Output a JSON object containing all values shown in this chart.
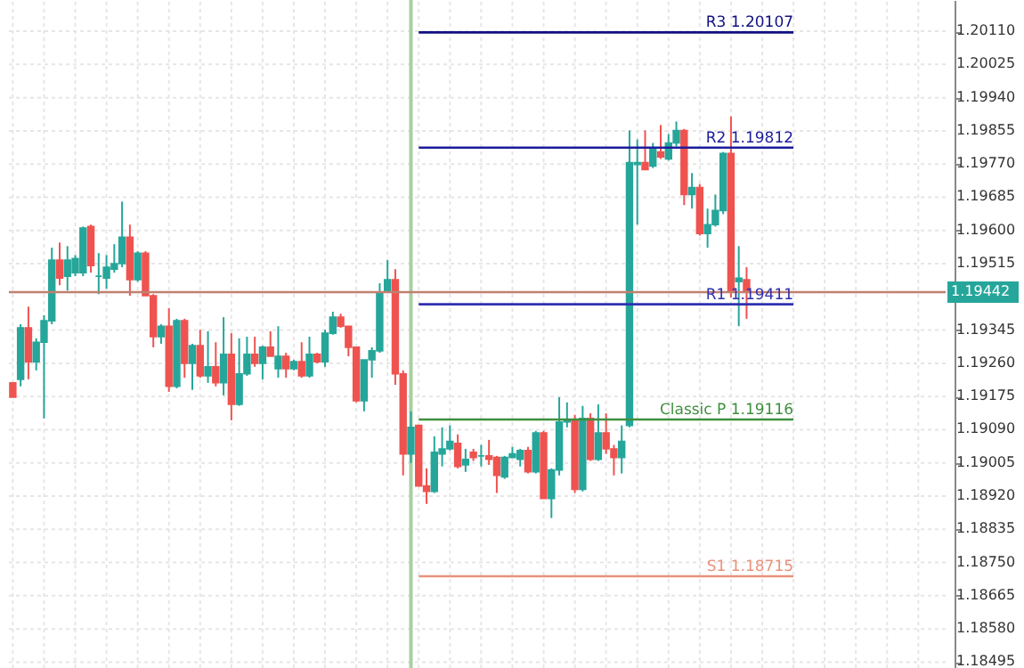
{
  "chart_data": {
    "type": "candlestick",
    "categories": [
      null,
      null,
      null,
      null,
      null,
      null,
      null,
      null,
      null,
      null,
      null,
      null,
      null,
      null,
      null,
      null,
      null,
      null,
      null,
      null,
      null,
      null,
      null,
      null,
      null,
      null,
      null,
      null,
      null,
      null,
      null,
      null,
      null,
      null,
      null,
      null,
      null,
      null,
      null,
      null,
      null,
      null,
      null,
      null,
      null,
      null,
      null,
      null,
      null,
      null,
      null,
      null,
      null,
      null,
      null,
      null,
      null,
      null,
      null,
      null,
      null,
      null,
      null,
      null,
      null,
      null,
      null,
      null,
      null,
      null,
      null,
      null,
      null,
      null,
      null,
      null,
      null,
      null,
      null,
      null,
      null,
      null,
      null,
      null,
      null,
      null,
      null,
      null,
      null,
      null,
      null,
      null,
      null,
      null,
      null,
      null,
      null,
      null,
      null,
      null,
      null,
      null,
      null,
      null,
      null,
      null,
      null,
      null,
      null,
      null,
      null,
      null,
      null,
      null,
      null,
      null,
      null,
      null,
      null,
      null
    ],
    "ohlc": [
      [
        1.1921,
        1.1921,
        1.19173,
        1.19173
      ],
      [
        1.19219,
        1.1936,
        1.19201,
        1.19351
      ],
      [
        1.19351,
        1.19405,
        1.19219,
        1.19264
      ],
      [
        1.19264,
        1.19324,
        1.19242,
        1.19314
      ],
      [
        1.19314,
        1.19383,
        1.19119,
        1.19369
      ],
      [
        1.19369,
        1.19556,
        1.1936,
        1.19524
      ],
      [
        1.19524,
        1.19569,
        1.1946,
        1.19478
      ],
      [
        1.19483,
        1.1956,
        1.19446,
        1.19524
      ],
      [
        1.19492,
        1.19537,
        1.19483,
        1.19528
      ],
      [
        1.19492,
        1.1961,
        1.19483,
        1.19606
      ],
      [
        1.1961,
        1.19615,
        1.19492,
        1.1951
      ],
      [
        1.19483,
        1.19542,
        1.19437,
        1.19483
      ],
      [
        1.19478,
        1.19537,
        1.19451,
        1.19506
      ],
      [
        1.19501,
        1.19565,
        1.19492,
        1.19515
      ],
      [
        1.19515,
        1.19674,
        1.19506,
        1.19583
      ],
      [
        1.19583,
        1.19615,
        1.19433,
        1.19474
      ],
      [
        1.19474,
        1.19547,
        1.19469,
        1.19542
      ],
      [
        1.19542,
        1.19547,
        1.19433,
        1.19433
      ],
      [
        1.19433,
        1.19437,
        1.19301,
        1.19328
      ],
      [
        1.19328,
        1.1936,
        1.1931,
        1.19355
      ],
      [
        1.19355,
        1.19401,
        1.19187,
        1.19201
      ],
      [
        1.19201,
        1.19374,
        1.19196,
        1.19369
      ],
      [
        1.19369,
        1.19374,
        1.19223,
        1.1926
      ],
      [
        1.1926,
        1.1931,
        1.19192,
        1.19305
      ],
      [
        1.19305,
        1.19346,
        1.19223,
        1.19228
      ],
      [
        1.19228,
        1.19342,
        1.1921,
        1.19251
      ],
      [
        1.19251,
        1.19314,
        1.19201,
        1.1921
      ],
      [
        1.1921,
        1.19378,
        1.19178,
        1.19283
      ],
      [
        1.19283,
        1.19337,
        1.19114,
        1.19155
      ],
      [
        1.19155,
        1.19324,
        1.19151,
        1.19233
      ],
      [
        1.19233,
        1.19328,
        1.19228,
        1.19283
      ],
      [
        1.19283,
        1.19328,
        1.19251,
        1.1926
      ],
      [
        1.1926,
        1.19305,
        1.19219,
        1.19301
      ],
      [
        1.19301,
        1.19342,
        1.19278,
        1.19278
      ],
      [
        1.19246,
        1.19355,
        1.19223,
        1.19278
      ],
      [
        1.19278,
        1.19287,
        1.19223,
        1.19246
      ],
      [
        1.19246,
        1.19269,
        1.19242,
        1.19264
      ],
      [
        1.19264,
        1.19314,
        1.19223,
        1.19228
      ],
      [
        1.19228,
        1.19328,
        1.19223,
        1.19283
      ],
      [
        1.19283,
        1.19287,
        1.1926,
        1.19264
      ],
      [
        1.19264,
        1.19346,
        1.19251,
        1.19337
      ],
      [
        1.19337,
        1.19392,
        1.19333,
        1.19378
      ],
      [
        1.19378,
        1.19387,
        1.19351,
        1.19355
      ],
      [
        1.19355,
        1.19355,
        1.19278,
        1.19301
      ],
      [
        1.19301,
        1.19301,
        1.1916,
        1.19164
      ],
      [
        1.19164,
        1.19269,
        1.19137,
        1.19269
      ],
      [
        1.19269,
        1.19301,
        1.19223,
        1.19292
      ],
      [
        1.19292,
        1.19465,
        1.19287,
        1.19442
      ],
      [
        1.19442,
        1.19524,
        1.19442,
        1.19474
      ],
      [
        1.19474,
        1.19501,
        1.19205,
        1.19233
      ],
      [
        1.19233,
        1.19242,
        1.18973,
        1.19028
      ],
      [
        1.19028,
        1.19137,
        1.19005,
        1.19096
      ],
      [
        1.19101,
        1.19101,
        1.18946,
        1.18946
      ],
      [
        1.18946,
        1.18991,
        1.189,
        1.18932
      ],
      [
        1.18932,
        1.19073,
        1.18928,
        1.19032
      ],
      [
        1.19028,
        1.19096,
        1.18996,
        1.19041
      ],
      [
        1.19041,
        1.19101,
        1.19037,
        1.1906
      ],
      [
        1.19055,
        1.19078,
        1.18991,
        1.18996
      ],
      [
        1.19,
        1.19041,
        1.18982,
        1.19014
      ],
      [
        1.19032,
        1.19041,
        1.1901,
        1.19019
      ],
      [
        1.19023,
        1.19051,
        1.18996,
        1.19023
      ],
      [
        1.19023,
        1.19064,
        1.19,
        1.19014
      ],
      [
        1.19019,
        1.19023,
        1.18928,
        1.18973
      ],
      [
        1.18969,
        1.19023,
        1.18964,
        1.19019
      ],
      [
        1.19019,
        1.19046,
        1.19019,
        1.19028
      ],
      [
        1.19014,
        1.19041,
        1.18996,
        1.19037
      ],
      [
        1.19037,
        1.19046,
        1.18978,
        1.18982
      ],
      [
        1.18982,
        1.19087,
        1.18978,
        1.19082
      ],
      [
        1.19082,
        1.19087,
        1.18914,
        1.18914
      ],
      [
        1.18914,
        1.18991,
        1.18864,
        1.18987
      ],
      [
        1.18987,
        1.19173,
        1.18973,
        1.1911
      ],
      [
        1.1911,
        1.1916,
        1.19096,
        1.19114
      ],
      [
        1.19114,
        1.19128,
        1.18928,
        1.18937
      ],
      [
        1.18937,
        1.19151,
        1.18932,
        1.19119
      ],
      [
        1.19119,
        1.19132,
        1.1901,
        1.19014
      ],
      [
        1.19014,
        1.19155,
        1.1901,
        1.19082
      ],
      [
        1.19082,
        1.19132,
        1.19028,
        1.19041
      ],
      [
        1.19041,
        1.19051,
        1.18973,
        1.19019
      ],
      [
        1.19019,
        1.19101,
        1.18978,
        1.1906
      ],
      [
        1.19101,
        1.19856,
        1.19096,
        1.19774
      ],
      [
        1.19769,
        1.19833,
        1.19615,
        1.19774
      ],
      [
        1.19774,
        1.19856,
        1.19756,
        1.19756
      ],
      [
        1.19765,
        1.19824,
        1.1976,
        1.1981
      ],
      [
        1.19801,
        1.1987,
        1.19783,
        1.19788
      ],
      [
        1.19783,
        1.19847,
        1.19779,
        1.19824
      ],
      [
        1.19824,
        1.19879,
        1.19815,
        1.19856
      ],
      [
        1.19856,
        1.1986,
        1.19665,
        1.19692
      ],
      [
        1.19692,
        1.19747,
        1.19656,
        1.1971
      ],
      [
        1.1971,
        1.19719,
        1.19587,
        1.19592
      ],
      [
        1.19592,
        1.19656,
        1.19556,
        1.19615
      ],
      [
        1.19615,
        1.19692,
        1.1961,
        1.19651
      ],
      [
        1.19651,
        1.19801,
        1.19642,
        1.19797
      ],
      [
        1.19797,
        1.19892,
        1.19428,
        1.19446
      ],
      [
        1.19469,
        1.1956,
        1.19355,
        1.19478
      ],
      [
        1.19474,
        1.19506,
        1.19374,
        1.19442
      ],
      null,
      null,
      null,
      null,
      null,
      null,
      null,
      null,
      null,
      null,
      null,
      null,
      null,
      null,
      null,
      null,
      null,
      null,
      null,
      null,
      null,
      null,
      null,
      null,
      null
    ],
    "colors": [
      "#ef5350",
      "#26a69a",
      "#ef5350",
      "#26a69a",
      "#26a69a",
      "#26a69a",
      "#ef5350",
      "#26a69a",
      "#26a69a",
      "#26a69a",
      "#ef5350",
      "#26a69a",
      "#26a69a",
      "#26a69a",
      "#26a69a",
      "#ef5350",
      "#26a69a",
      "#ef5350",
      "#ef5350",
      "#26a69a",
      "#ef5350",
      "#26a69a",
      "#ef5350",
      "#26a69a",
      "#ef5350",
      "#26a69a",
      "#ef5350",
      "#26a69a",
      "#ef5350",
      "#26a69a",
      "#26a69a",
      "#ef5350",
      "#26a69a",
      "#ef5350",
      "#26a69a",
      "#ef5350",
      "#26a69a",
      "#ef5350",
      "#26a69a",
      "#ef5350",
      "#26a69a",
      "#26a69a",
      "#ef5350",
      "#ef5350",
      "#ef5350",
      "#26a69a",
      "#26a69a",
      "#26a69a",
      "#26a69a",
      "#ef5350",
      "#ef5350",
      "#26a69a",
      "#ef5350",
      "#ef5350",
      "#26a69a",
      "#26a69a",
      "#26a69a",
      "#ef5350",
      "#26a69a",
      "#ef5350",
      "#26a69a",
      "#ef5350",
      "#ef5350",
      "#26a69a",
      "#26a69a",
      "#26a69a",
      "#ef5350",
      "#26a69a",
      "#ef5350",
      "#26a69a",
      "#26a69a",
      "#26a69a",
      "#ef5350",
      "#26a69a",
      "#ef5350",
      "#26a69a",
      "#ef5350",
      "#ef5350",
      "#26a69a",
      "#26a69a",
      "#26a69a",
      "#ef5350",
      "#26a69a",
      "#ef5350",
      "#26a69a",
      "#26a69a",
      "#ef5350",
      "#26a69a",
      "#ef5350",
      "#26a69a",
      "#26a69a",
      "#26a69a",
      "#ef5350",
      "#26a69a",
      "#ef5350",
      null,
      null,
      null,
      null,
      null,
      null,
      null,
      null,
      null,
      null,
      null,
      null,
      null,
      null,
      null,
      null,
      null,
      null,
      null,
      null,
      null,
      null,
      null,
      null,
      null
    ],
    "ylim": [
      1.1848,
      1.2019
    ],
    "yticks": [
      1.18495,
      {
        "value": 1.1858,
        "label": "1.18580"
      },
      1.18665,
      {
        "value": 1.1875,
        "label": "1.18750"
      },
      1.18835,
      {
        "value": 1.1892,
        "label": "1.18920"
      },
      1.19005,
      {
        "value": 1.1909,
        "label": "1.19090"
      },
      1.19175,
      {
        "value": 1.1926,
        "label": "1.19260"
      },
      1.19345,
      1.19515,
      {
        "value": 1.196,
        "label": "1.19600"
      },
      1.19685,
      {
        "value": 1.1977,
        "label": "1.19770"
      },
      1.19855,
      {
        "value": 1.1994,
        "label": "1.19940"
      },
      1.20025,
      {
        "value": 1.2011,
        "label": "1.20110"
      }
    ],
    "grid": true,
    "ref_lines": [
      {
        "axis": "y",
        "value": 1.19442,
        "label": "1.19442",
        "color": "#c0806f"
      },
      {
        "axis": "y",
        "value": 1.20107,
        "label": "R3 1.20107",
        "color": "#101080"
      },
      {
        "axis": "y",
        "value": 1.19812,
        "label": "R2 1.19812",
        "color": "#1c1c9c"
      },
      {
        "axis": "y",
        "value": 1.19411,
        "label": "R1 1.19411",
        "color": "#3030b0"
      },
      {
        "axis": "y",
        "value": 1.19116,
        "label": "Classic P 1.19116",
        "color": "#3f8f3f"
      },
      {
        "axis": "y",
        "value": 1.18715,
        "label": "S1 1.18715",
        "color": "#e8927c"
      }
    ]
  }
}
